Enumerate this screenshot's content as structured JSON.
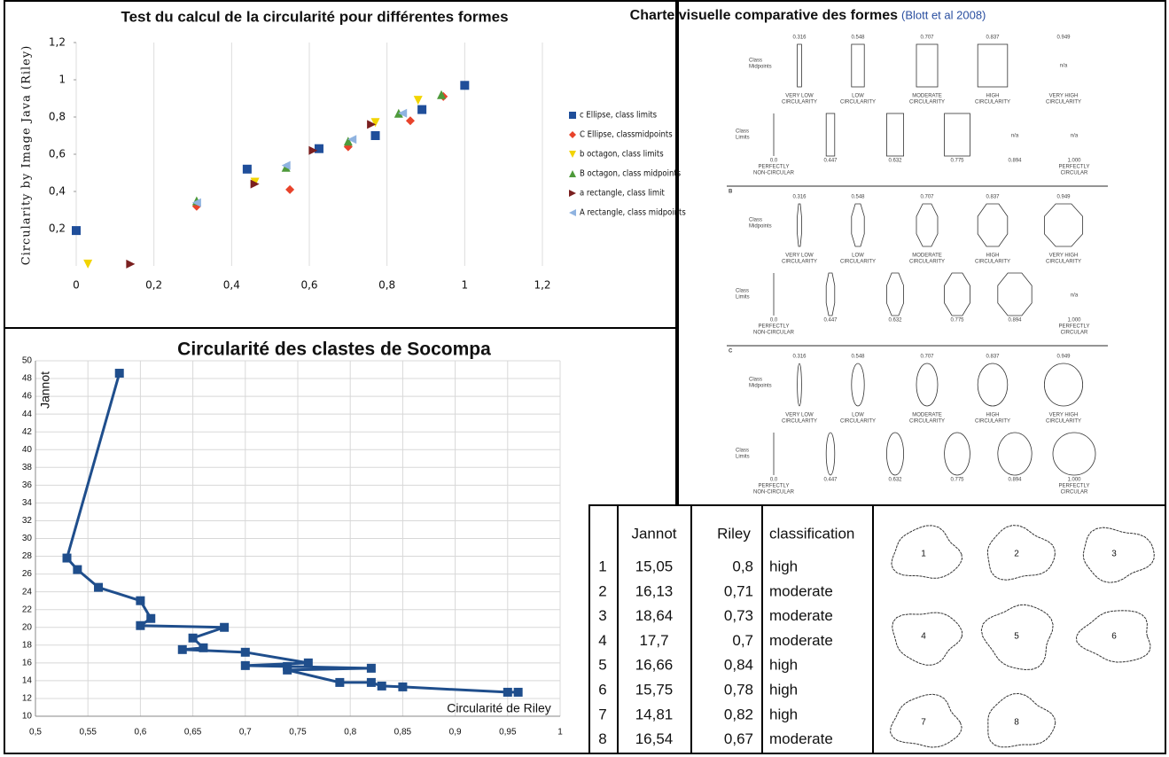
{
  "chart_data": [
    {
      "type": "scatter",
      "title": "Test du calcul de la circularité pour différentes formes",
      "y_label": "Circularity by Image Java (Riley)",
      "xlim": [
        0,
        1.2
      ],
      "xticks": [
        0,
        {
          "value": 0.2,
          "label": "0,2"
        },
        {
          "value": 0.4,
          "label": "0,4"
        },
        {
          "value": 0.6,
          "label": "0,6"
        },
        {
          "value": 0.8,
          "label": "0,8"
        },
        1,
        {
          "value": 1.2,
          "label": "1,2"
        }
      ],
      "ylim": [
        0,
        1.2
      ],
      "yticks": [
        {
          "value": 0.2,
          "label": "0,2"
        },
        {
          "value": 0.4,
          "label": "0,4"
        },
        {
          "value": 0.6,
          "label": "0,6"
        },
        {
          "value": 0.8,
          "label": "0,8"
        },
        1,
        {
          "value": 1.2,
          "label": "1,2"
        }
      ],
      "grid": true,
      "legend": "right",
      "series": [
        {
          "name": "c Ellipse, class limits",
          "color": "#1f4e9a",
          "marker": "square",
          "x": [
            0,
            0.44,
            0.625,
            0.77,
            0.89,
            1.0
          ],
          "values": [
            0.19,
            0.52,
            0.63,
            0.7,
            0.84,
            0.97
          ]
        },
        {
          "name": "C Ellipse, classmidpoints",
          "color": "#e8432b",
          "marker": "diamond",
          "x": [
            0.31,
            0.55,
            0.7,
            0.86,
            0.945
          ],
          "values": [
            0.32,
            0.41,
            0.64,
            0.78,
            0.91
          ]
        },
        {
          "name": "b octagon, class limits",
          "color": "#f2d400",
          "marker": "triangle-down",
          "x": [
            0.03,
            0.46,
            0.77,
            0.88
          ],
          "values": [
            0.01,
            0.45,
            0.77,
            0.89
          ]
        },
        {
          "name": "B octagon, class midpoints",
          "color": "#4e9a3a",
          "marker": "triangle-up",
          "x": [
            0.31,
            0.54,
            0.7,
            0.83,
            0.94
          ],
          "values": [
            0.35,
            0.53,
            0.67,
            0.82,
            0.92
          ]
        },
        {
          "name": "a rectangle, class limit",
          "color": "#7a1f1f",
          "marker": "triangle-right",
          "x": [
            0.14,
            0.46,
            0.61,
            0.76
          ],
          "values": [
            0.01,
            0.44,
            0.62,
            0.76
          ]
        },
        {
          "name": "A rectangle, class midpoints",
          "color": "#8fb3e0",
          "marker": "triangle-left",
          "x": [
            0.31,
            0.54,
            0.71,
            0.84
          ],
          "values": [
            0.34,
            0.54,
            0.68,
            0.82
          ]
        }
      ]
    },
    {
      "type": "line",
      "title": "Circularité des clastes de Socompa",
      "x_label": "Circularité de Riley",
      "y_label": "Jannot",
      "xlim": [
        0.5,
        1
      ],
      "xticks": [
        {
          "value": 0.5,
          "label": "0,5"
        },
        {
          "value": 0.55,
          "label": "0,55"
        },
        {
          "value": 0.6,
          "label": "0,6"
        },
        {
          "value": 0.65,
          "label": "0,65"
        },
        {
          "value": 0.7,
          "label": "0,7"
        },
        {
          "value": 0.75,
          "label": "0,75"
        },
        {
          "value": 0.8,
          "label": "0,8"
        },
        {
          "value": 0.85,
          "label": "0,85"
        },
        {
          "value": 0.9,
          "label": "0,9"
        },
        {
          "value": 0.95,
          "label": "0,95"
        },
        1
      ],
      "ylim": [
        10,
        50
      ],
      "yticks": [
        10,
        12,
        14,
        16,
        18,
        20,
        22,
        24,
        26,
        28,
        30,
        32,
        34,
        36,
        38,
        40,
        42,
        44,
        46,
        48,
        50
      ],
      "grid": true,
      "x": [
        0.58,
        0.53,
        0.54,
        0.56,
        0.6,
        0.61,
        0.6,
        0.68,
        0.65,
        0.66,
        0.64,
        0.7,
        0.76,
        0.7,
        0.74,
        0.82,
        0.74,
        0.79,
        0.82,
        0.83,
        0.85,
        0.95,
        0.96
      ],
      "series": [
        {
          "color": "#1f4e8c",
          "values": [
            48.6,
            27.8,
            26.5,
            24.5,
            23,
            21,
            20.2,
            20,
            18.8,
            17.7,
            17.5,
            17.2,
            16,
            15.7,
            15.6,
            15.4,
            15.2,
            13.8,
            13.8,
            13.4,
            13.3,
            12.7,
            12.7
          ]
        }
      ]
    }
  ],
  "shape_chart": {
    "title": "Charte  visuelle comparative des formes",
    "source": "(Blott et al 2008)",
    "panel_letters": [
      "B",
      "C"
    ],
    "midpoints_label": [
      "Class",
      "Midpoints"
    ],
    "limits_label": [
      "Class",
      "Limits"
    ],
    "midpoints": [
      "0.316",
      "0.548",
      "0.707",
      "0.837",
      "0.949"
    ],
    "limits": [
      "0.0",
      "0.447",
      "0.632",
      "0.775",
      "0.894",
      "1.000"
    ],
    "classes": [
      [
        "VERY LOW",
        "CIRCULARITY"
      ],
      [
        "LOW",
        "CIRCULARITY"
      ],
      [
        "MODERATE",
        "CIRCULARITY"
      ],
      [
        "HIGH",
        "CIRCULARITY"
      ],
      [
        "VERY HIGH",
        "CIRCULARITY"
      ]
    ],
    "not_available": "n/a",
    "low_end": [
      "PERFECTLY",
      "NON-CIRCULAR"
    ],
    "high_end": [
      "PERFECTLY",
      "CIRCULAR"
    ]
  },
  "table": {
    "columns": [
      "Jannot",
      "Riley",
      "classification"
    ],
    "rows": [
      [
        "1",
        "15,05",
        "0,8",
        "high"
      ],
      [
        "2",
        "16,13",
        "0,71",
        "moderate"
      ],
      [
        "3",
        "18,64",
        "0,73",
        "moderate"
      ],
      [
        "4",
        "17,7",
        "0,7",
        "moderate"
      ],
      [
        "5",
        "16,66",
        "0,84",
        "high"
      ],
      [
        "6",
        "15,75",
        "0,78",
        "high"
      ],
      [
        "7",
        "14,81",
        "0,82",
        "high"
      ],
      [
        "8",
        "16,54",
        "0,67",
        "moderate"
      ]
    ]
  }
}
